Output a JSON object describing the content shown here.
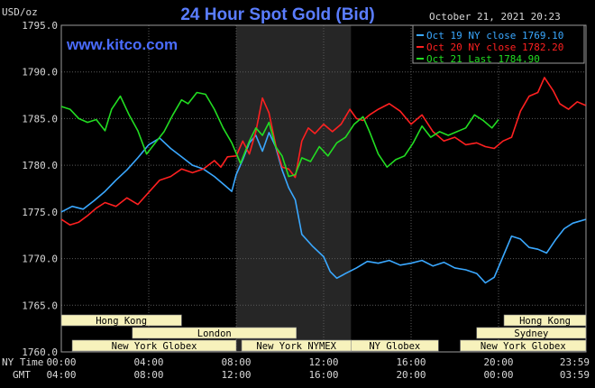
{
  "chart_data": {
    "type": "line",
    "title": "24 Hour Spot Gold (Bid)",
    "site": "www.kitco.com",
    "date_label": "October 21, 2021 20:23",
    "ylabel": "USD/oz",
    "ylim": [
      1760,
      1795
    ],
    "yticks": [
      "1795.0",
      "1790.0",
      "1785.0",
      "1780.0",
      "1775.0",
      "1770.0",
      "1765.0",
      "1760.0"
    ],
    "ytick_values": [
      1795,
      1790,
      1785,
      1780,
      1775,
      1770,
      1765,
      1760
    ],
    "x_hours": [
      0,
      4,
      8,
      12,
      16,
      20,
      24
    ],
    "xticks_ny": [
      "00:00",
      "04:00",
      "08:00",
      "12:00",
      "16:00",
      "20:00",
      "23:59"
    ],
    "xticks_gmt": [
      "04:00",
      "08:00",
      "12:00",
      "16:00",
      "20:00",
      "00:00",
      "03:59"
    ],
    "xaxis_label_ny": "NY Time",
    "xaxis_label_gmt": "GMT",
    "grid": true,
    "highlight_hours": [
      8,
      13.25
    ],
    "legend": [
      {
        "label": "Oct 19 NY close 1769.10",
        "color": "#3aa8ff"
      },
      {
        "label": "Oct 20 NY close 1782.20",
        "color": "#ff2020"
      },
      {
        "label": "Oct 21 Last 1784.90",
        "color": "#22dd22"
      }
    ],
    "sessions": [
      {
        "label": "Hong Kong",
        "start": 0,
        "end": 5.5,
        "row": 0
      },
      {
        "label": "Hong Kong",
        "start": 20.25,
        "end": 24,
        "row": 0
      },
      {
        "label": "London",
        "start": 3.25,
        "end": 10.75,
        "row": 1
      },
      {
        "label": "Sydney",
        "start": 19,
        "end": 24,
        "row": 1
      },
      {
        "label": "New York Globex",
        "start": 0.5,
        "end": 8,
        "row": 2
      },
      {
        "label": "New York NYMEX",
        "start": 8.25,
        "end": 13.25,
        "row": 2
      },
      {
        "label": "NY Globex",
        "start": 13.25,
        "end": 17.25,
        "row": 2
      },
      {
        "label": "New York Globex",
        "start": 18.25,
        "end": 24,
        "row": 2
      }
    ],
    "series": [
      {
        "name": "Oct 19",
        "color": "#3aa8ff",
        "points": [
          [
            0,
            1775.0
          ],
          [
            0.5,
            1775.6
          ],
          [
            1.0,
            1775.3
          ],
          [
            1.5,
            1776.2
          ],
          [
            2.0,
            1777.2
          ],
          [
            2.5,
            1778.4
          ],
          [
            3.0,
            1779.5
          ],
          [
            3.5,
            1780.8
          ],
          [
            4.0,
            1782.2
          ],
          [
            4.5,
            1782.9
          ],
          [
            5.0,
            1781.8
          ],
          [
            5.5,
            1780.9
          ],
          [
            6.0,
            1780.0
          ],
          [
            6.5,
            1779.6
          ],
          [
            7.0,
            1778.8
          ],
          [
            7.5,
            1777.8
          ],
          [
            7.8,
            1777.2
          ],
          [
            8.0,
            1779.0
          ],
          [
            8.3,
            1780.6
          ],
          [
            8.6,
            1782.4
          ],
          [
            8.9,
            1783.2
          ],
          [
            9.2,
            1781.5
          ],
          [
            9.5,
            1783.5
          ],
          [
            9.8,
            1782.0
          ],
          [
            10.1,
            1779.5
          ],
          [
            10.4,
            1777.6
          ],
          [
            10.7,
            1776.3
          ],
          [
            11.0,
            1772.6
          ],
          [
            11.5,
            1771.3
          ],
          [
            12.0,
            1770.2
          ],
          [
            12.3,
            1768.6
          ],
          [
            12.6,
            1767.9
          ],
          [
            13.0,
            1768.4
          ],
          [
            13.5,
            1769.0
          ],
          [
            14.0,
            1769.7
          ],
          [
            14.5,
            1769.5
          ],
          [
            15.0,
            1769.8
          ],
          [
            15.5,
            1769.3
          ],
          [
            16.0,
            1769.5
          ],
          [
            16.5,
            1769.8
          ],
          [
            17.0,
            1769.2
          ],
          [
            17.5,
            1769.6
          ],
          [
            18.0,
            1769.0
          ],
          [
            18.5,
            1768.8
          ],
          [
            19.0,
            1768.4
          ],
          [
            19.4,
            1767.4
          ],
          [
            19.8,
            1768.0
          ],
          [
            20.2,
            1770.2
          ],
          [
            20.6,
            1772.4
          ],
          [
            21.0,
            1772.1
          ],
          [
            21.4,
            1771.2
          ],
          [
            21.8,
            1771.0
          ],
          [
            22.2,
            1770.6
          ],
          [
            22.6,
            1772.0
          ],
          [
            23.0,
            1773.2
          ],
          [
            23.4,
            1773.8
          ],
          [
            23.7,
            1774.0
          ],
          [
            23.99,
            1774.2
          ]
        ]
      },
      {
        "name": "Oct 20",
        "color": "#ff2020",
        "points": [
          [
            0,
            1774.2
          ],
          [
            0.4,
            1773.6
          ],
          [
            0.8,
            1773.9
          ],
          [
            1.2,
            1774.6
          ],
          [
            1.6,
            1775.4
          ],
          [
            2.0,
            1776.0
          ],
          [
            2.5,
            1775.6
          ],
          [
            3.0,
            1776.5
          ],
          [
            3.5,
            1775.8
          ],
          [
            4.0,
            1777.1
          ],
          [
            4.5,
            1778.4
          ],
          [
            5.0,
            1778.8
          ],
          [
            5.5,
            1779.6
          ],
          [
            6.0,
            1779.2
          ],
          [
            6.5,
            1779.6
          ],
          [
            7.0,
            1780.5
          ],
          [
            7.3,
            1779.8
          ],
          [
            7.6,
            1780.9
          ],
          [
            8.0,
            1781.0
          ],
          [
            8.3,
            1782.6
          ],
          [
            8.6,
            1781.2
          ],
          [
            8.9,
            1783.6
          ],
          [
            9.2,
            1787.2
          ],
          [
            9.5,
            1785.6
          ],
          [
            9.8,
            1782.2
          ],
          [
            10.1,
            1779.8
          ],
          [
            10.4,
            1779.6
          ],
          [
            10.7,
            1778.7
          ],
          [
            11.0,
            1782.6
          ],
          [
            11.3,
            1784.0
          ],
          [
            11.6,
            1783.4
          ],
          [
            12.0,
            1784.4
          ],
          [
            12.4,
            1783.6
          ],
          [
            12.8,
            1784.4
          ],
          [
            13.2,
            1786.0
          ],
          [
            13.5,
            1785.0
          ],
          [
            13.8,
            1784.8
          ],
          [
            14.1,
            1785.4
          ],
          [
            14.5,
            1786.0
          ],
          [
            15.0,
            1786.6
          ],
          [
            15.5,
            1785.8
          ],
          [
            16.0,
            1784.4
          ],
          [
            16.5,
            1785.4
          ],
          [
            17.0,
            1783.6
          ],
          [
            17.5,
            1782.6
          ],
          [
            18.0,
            1783.0
          ],
          [
            18.5,
            1782.2
          ],
          [
            19.0,
            1782.4
          ],
          [
            19.4,
            1782.0
          ],
          [
            19.8,
            1781.8
          ],
          [
            20.2,
            1782.6
          ],
          [
            20.6,
            1783.0
          ],
          [
            21.0,
            1785.8
          ],
          [
            21.4,
            1787.4
          ],
          [
            21.8,
            1787.8
          ],
          [
            22.1,
            1789.4
          ],
          [
            22.5,
            1788.0
          ],
          [
            22.8,
            1786.6
          ],
          [
            23.2,
            1786.0
          ],
          [
            23.6,
            1786.8
          ],
          [
            23.99,
            1786.4
          ]
        ]
      },
      {
        "name": "Oct 21",
        "color": "#22dd22",
        "points": [
          [
            0,
            1786.3
          ],
          [
            0.4,
            1786.0
          ],
          [
            0.8,
            1785.0
          ],
          [
            1.2,
            1784.6
          ],
          [
            1.6,
            1784.9
          ],
          [
            2.0,
            1783.7
          ],
          [
            2.3,
            1786.0
          ],
          [
            2.7,
            1787.4
          ],
          [
            3.1,
            1785.4
          ],
          [
            3.5,
            1783.7
          ],
          [
            3.9,
            1781.2
          ],
          [
            4.3,
            1782.4
          ],
          [
            4.7,
            1783.6
          ],
          [
            5.1,
            1785.4
          ],
          [
            5.5,
            1787.0
          ],
          [
            5.8,
            1786.6
          ],
          [
            6.2,
            1787.8
          ],
          [
            6.6,
            1787.6
          ],
          [
            7.0,
            1786.0
          ],
          [
            7.4,
            1784.0
          ],
          [
            7.8,
            1782.4
          ],
          [
            8.2,
            1780.2
          ],
          [
            8.6,
            1782.6
          ],
          [
            8.9,
            1784.0
          ],
          [
            9.2,
            1783.2
          ],
          [
            9.5,
            1784.6
          ],
          [
            9.8,
            1782.0
          ],
          [
            10.1,
            1781.0
          ],
          [
            10.4,
            1778.8
          ],
          [
            10.7,
            1779.0
          ],
          [
            11.0,
            1780.8
          ],
          [
            11.4,
            1780.4
          ],
          [
            11.8,
            1782.0
          ],
          [
            12.2,
            1781.0
          ],
          [
            12.6,
            1782.4
          ],
          [
            13.0,
            1783.0
          ],
          [
            13.4,
            1784.4
          ],
          [
            13.8,
            1785.2
          ],
          [
            14.1,
            1783.6
          ],
          [
            14.5,
            1781.2
          ],
          [
            14.9,
            1779.8
          ],
          [
            15.3,
            1780.6
          ],
          [
            15.7,
            1781.0
          ],
          [
            16.1,
            1782.4
          ],
          [
            16.5,
            1784.2
          ],
          [
            16.9,
            1783.0
          ],
          [
            17.3,
            1783.6
          ],
          [
            17.7,
            1783.2
          ],
          [
            18.1,
            1783.6
          ],
          [
            18.5,
            1784.0
          ],
          [
            18.9,
            1785.4
          ],
          [
            19.3,
            1784.8
          ],
          [
            19.7,
            1784.0
          ],
          [
            20.0,
            1784.9
          ]
        ]
      }
    ]
  }
}
